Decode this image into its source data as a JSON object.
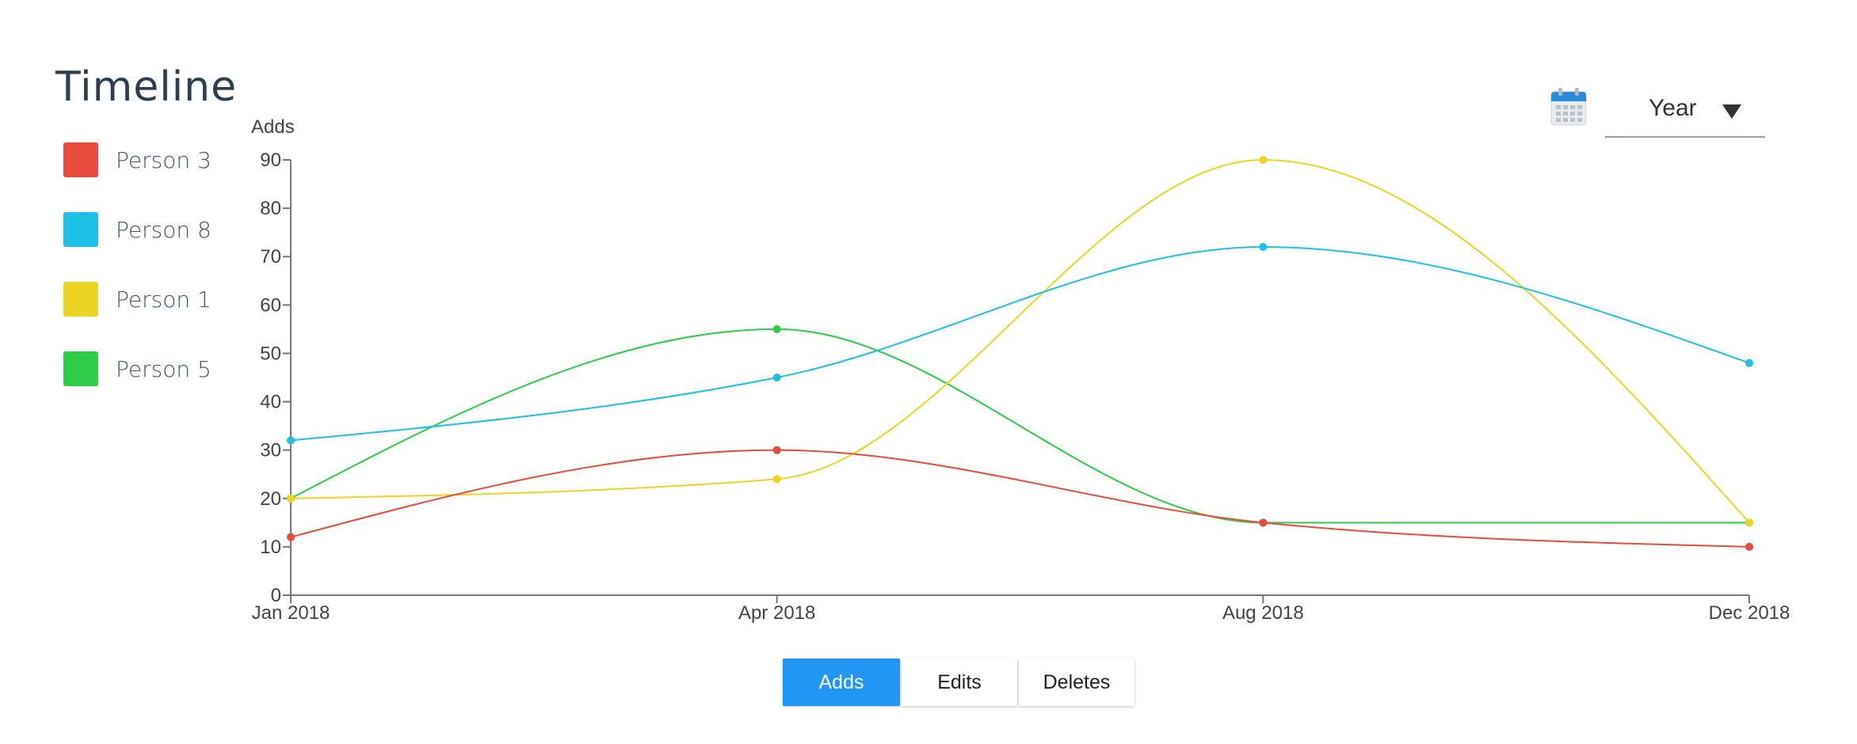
{
  "page": {
    "title": "Timeline"
  },
  "legend": [
    {
      "label": "Person 3",
      "color": "#e74c3c"
    },
    {
      "label": "Person 8",
      "color": "#1fc0e6"
    },
    {
      "label": "Person 1",
      "color": "#ecd424"
    },
    {
      "label": "Person 5",
      "color": "#2ecc4a"
    }
  ],
  "date_control": {
    "icon": "calendar-icon",
    "selected": "Year"
  },
  "tabs": [
    {
      "label": "Adds",
      "active": true
    },
    {
      "label": "Edits",
      "active": false
    },
    {
      "label": "Deletes",
      "active": false
    }
  ],
  "chart_data": {
    "type": "line",
    "title": "",
    "ylabel": "Adds",
    "xlabel": "",
    "ylim": [
      0,
      90
    ],
    "yticks": [
      0,
      10,
      20,
      30,
      40,
      50,
      60,
      70,
      80,
      90
    ],
    "x": [
      "2018-01",
      "2018-04",
      "2018-08",
      "2018-12"
    ],
    "xtick_labels": [
      "Jan 2018",
      "Apr 2018",
      "Aug 2018",
      "Dec 2018"
    ],
    "series": [
      {
        "name": "Person 3",
        "color": "#e74c3c",
        "values": [
          12,
          30,
          15,
          10
        ]
      },
      {
        "name": "Person 8",
        "color": "#1fc0e6",
        "values": [
          32,
          45,
          72,
          48
        ]
      },
      {
        "name": "Person 1",
        "color": "#ecd424",
        "values": [
          20,
          24,
          90,
          15
        ]
      },
      {
        "name": "Person 5",
        "color": "#2ecc4a",
        "values": [
          20,
          55,
          15,
          15
        ]
      }
    ],
    "grid": false,
    "curve": "smooth",
    "legend_position": "left"
  }
}
